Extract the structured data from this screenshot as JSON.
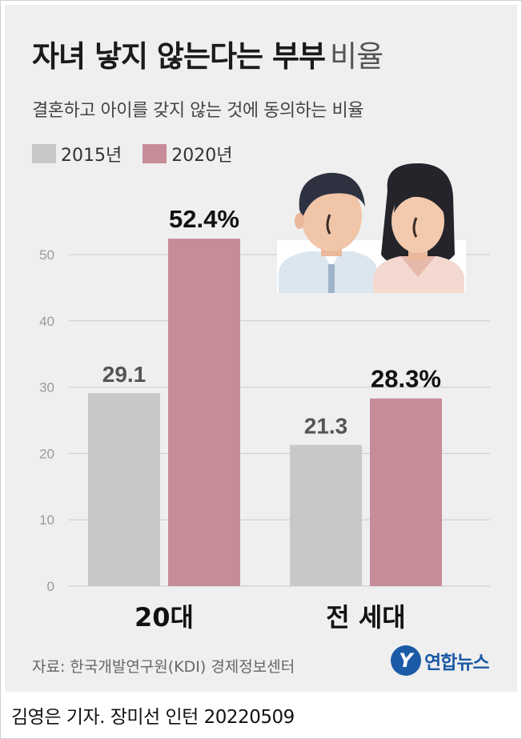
{
  "header": {
    "title_bold": "자녀 낳지 않는다는 부부",
    "title_light": "비율",
    "subtitle": "결혼하고 아이를 갖지 않는 것에 동의하는 비율"
  },
  "colors": {
    "series_2015": "#c8c8c8",
    "series_2020": "#c68c98",
    "grid": "#c9c9c9",
    "value_2015": "#555555",
    "value_2020": "#111111"
  },
  "chart_data": {
    "type": "bar",
    "categories": [
      "20대",
      "전 세대"
    ],
    "series": [
      {
        "name": "2015년",
        "values": [
          29.1,
          21.3
        ],
        "labels": [
          "29.1",
          "21.3"
        ]
      },
      {
        "name": "2020년",
        "values": [
          52.4,
          28.3
        ],
        "labels": [
          "52.4%",
          "28.3%"
        ]
      }
    ],
    "yticks": [
      "0",
      "10",
      "20",
      "30",
      "40",
      "50"
    ],
    "ylim": [
      0,
      55
    ],
    "grid": true,
    "legend": "top-left"
  },
  "illustration": {
    "name": "couple-illustration"
  },
  "footer": {
    "source": "자료: 한국개발연구원(KDI) 경제정보센터",
    "logo_mark": "Y",
    "logo_text": "연합뉴스",
    "credit": "김영은 기자. 장미선 인턴  20220509"
  }
}
